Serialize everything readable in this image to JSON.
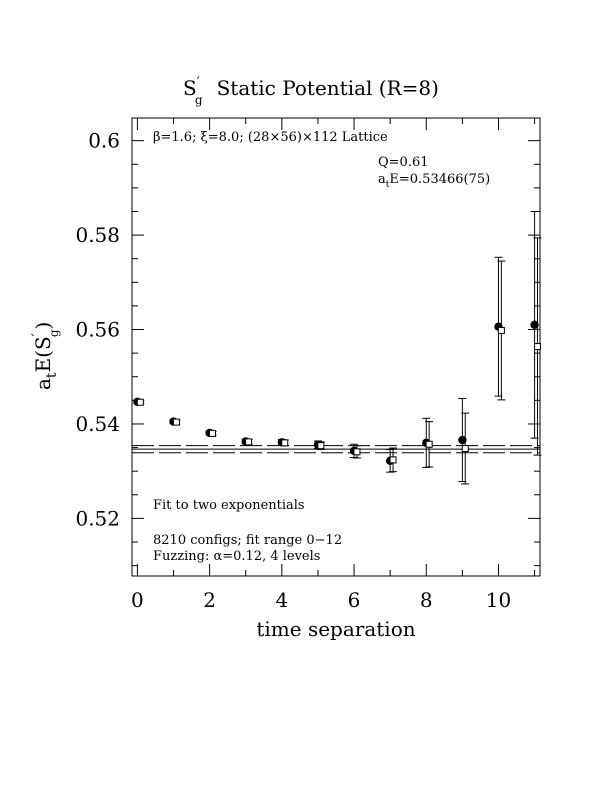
{
  "chart_data": {
    "type": "scatter",
    "title_main": "S",
    "title_rest": "Static Potential (R=8)",
    "title_sup": "′",
    "title_sub": "g",
    "xlabel": "time separation",
    "ylabel_prefix": "a",
    "ylabel_sub_t": "t",
    "ylabel_mid": "E(S",
    "ylabel_sup": "′",
    "ylabel_sub_g": "g",
    "ylabel_close": ")",
    "xlim": [
      -0.15,
      11.15
    ],
    "ylim": [
      0.5078,
      0.6048
    ],
    "x_ticks": [
      0,
      2,
      4,
      6,
      8,
      10
    ],
    "x_tick_labels": [
      "0",
      "2",
      "4",
      "6",
      "8",
      "10"
    ],
    "y_ticks": [
      0.52,
      0.54,
      0.56,
      0.58,
      0.6
    ],
    "y_tick_labels": [
      "0.52",
      "0.54",
      "0.56",
      "0.58",
      "0.6"
    ],
    "annotations": {
      "lattice": "β=1.6; ξ=8.0; (28×56)×112 Lattice",
      "q": "Q=0.61",
      "energy_prefix": "a",
      "energy_sub": "t",
      "energy_rest": "E=0.53466(75)",
      "fit_type": "Fit to two exponentials",
      "configs": "8210 configs; fit range 0−12",
      "fuzzing": "Fuzzing: α=0.12, 4 levels"
    },
    "fit_band": {
      "center": 0.53466,
      "lower": 0.53391,
      "upper": 0.53541
    },
    "series": [
      {
        "marker": "filled-circle",
        "x": [
          0,
          1,
          2,
          3,
          4,
          5,
          6,
          7,
          8,
          9,
          10,
          11
        ],
        "y": [
          0.5447,
          0.5405,
          0.5381,
          0.5363,
          0.5361,
          0.5356,
          0.5343,
          0.5322,
          0.536,
          0.5366,
          0.5606,
          0.561
        ],
        "err": [
          0.0003,
          0.0004,
          0.0004,
          0.0005,
          0.0006,
          0.0008,
          0.0014,
          0.0024,
          0.0052,
          0.0088,
          0.0147,
          0.024
        ]
      },
      {
        "marker": "open-square",
        "x": [
          0.08,
          1.08,
          2.08,
          3.08,
          4.08,
          5.08,
          6.08,
          7.08,
          8.08,
          9.08,
          10.08,
          11.08
        ],
        "y": [
          0.5446,
          0.5404,
          0.538,
          0.5362,
          0.536,
          0.5354,
          0.5341,
          0.5324,
          0.5357,
          0.5348,
          0.5598,
          0.5564
        ],
        "err": [
          0.0003,
          0.0004,
          0.0004,
          0.0005,
          0.0006,
          0.0008,
          0.0013,
          0.0025,
          0.0048,
          0.0075,
          0.0147,
          0.023
        ]
      }
    ]
  }
}
